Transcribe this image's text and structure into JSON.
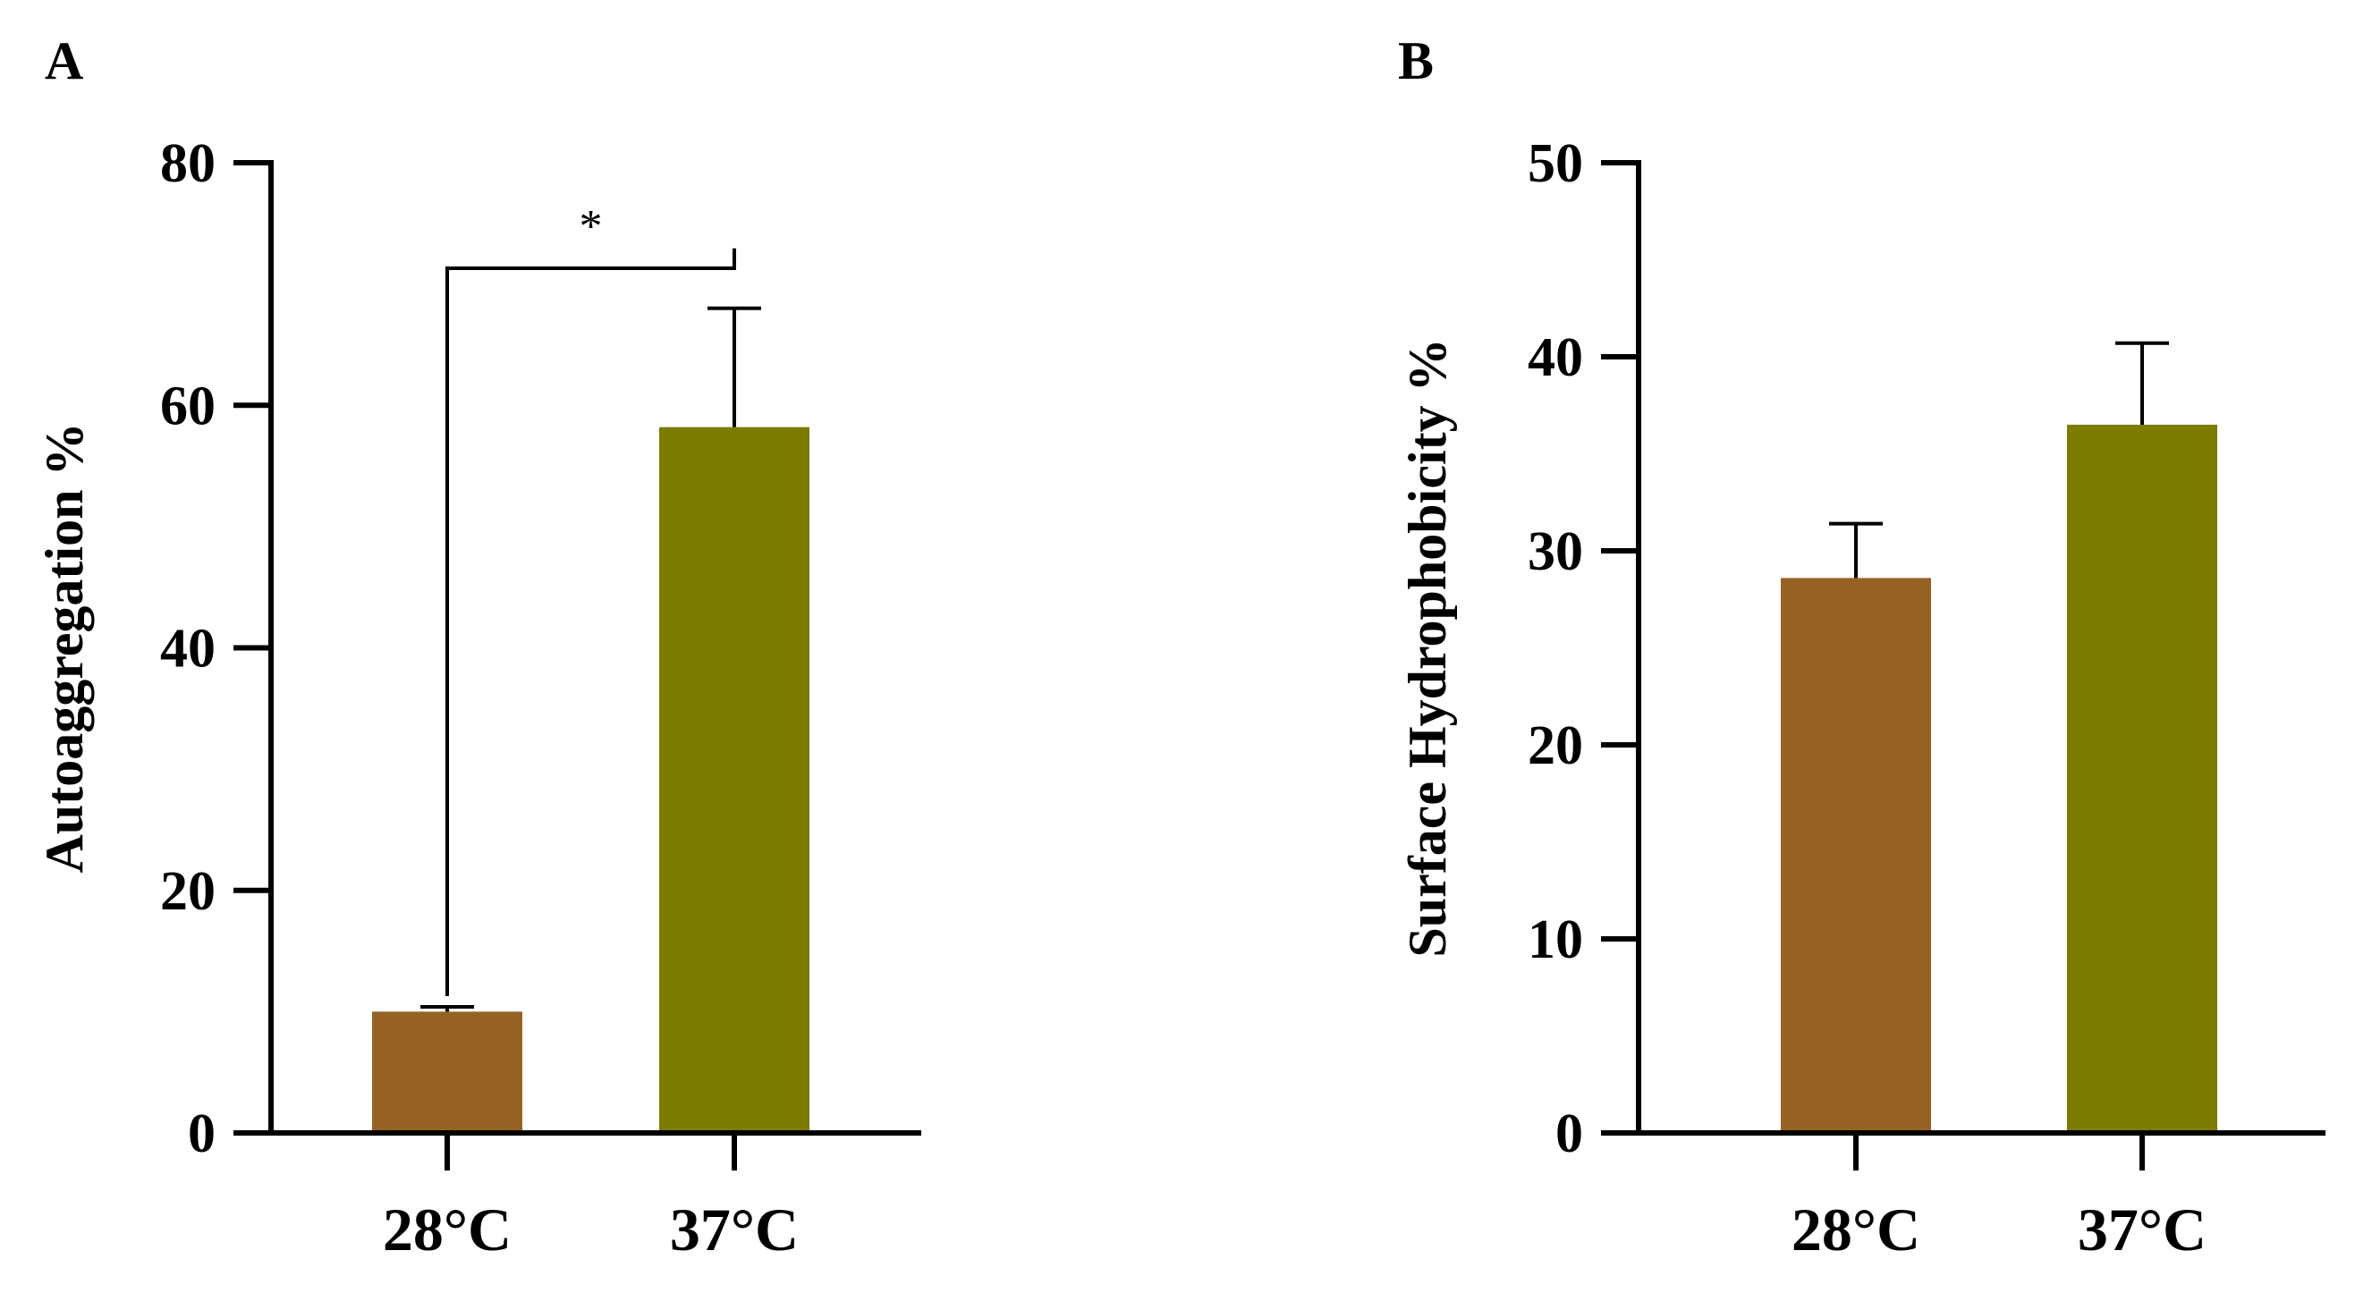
{
  "chart_data": [
    {
      "panel": "A",
      "type": "bar",
      "title": "",
      "xlabel": "",
      "ylabel": "Autoaggregation %",
      "ylim": [
        0,
        80
      ],
      "yticks": [
        0,
        20,
        40,
        60,
        80
      ],
      "categories": [
        "28°C",
        "37°C"
      ],
      "values": [
        10.0,
        58.2
      ],
      "errors": [
        0.4,
        9.8
      ],
      "colors": [
        "#956223",
        "#7c7c00"
      ],
      "significance": [
        {
          "between": [
            "28°C",
            "37°C"
          ],
          "label": "*"
        }
      ],
      "grid": false
    },
    {
      "panel": "B",
      "type": "bar",
      "title": "",
      "xlabel": "",
      "ylabel": "Surface Hydrophobicity %",
      "ylim": [
        0,
        50
      ],
      "yticks": [
        0,
        10,
        20,
        30,
        40,
        50
      ],
      "categories": [
        "28°C",
        "37°C"
      ],
      "values": [
        28.6,
        36.5
      ],
      "errors": [
        2.8,
        4.2
      ],
      "colors": [
        "#956223",
        "#7c7c00"
      ],
      "significance": [],
      "grid": false
    }
  ]
}
